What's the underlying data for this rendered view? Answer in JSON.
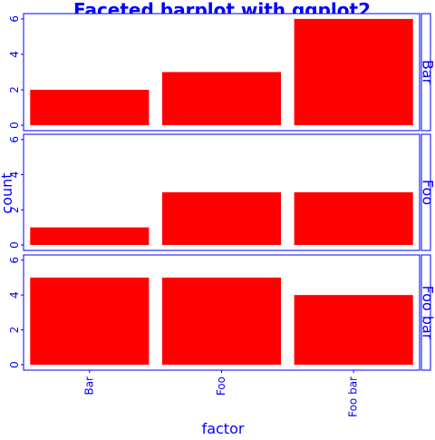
{
  "chart_data": {
    "type": "bar",
    "title": "Faceted barplot with ggplot2",
    "xlabel": "factor",
    "ylabel": "count",
    "categories": [
      "Bar",
      "Foo",
      "Foo bar"
    ],
    "ylim": [
      0,
      6.3
    ],
    "yticks": [
      "0",
      "2",
      "4",
      "6"
    ],
    "bar_color": "#ff0000",
    "text_color": "#0000ff",
    "axis_color": "#0000ff",
    "panel_background": "#ffffff",
    "grid": false,
    "facets": [
      {
        "label": "Bar",
        "values": [
          2,
          3,
          6
        ]
      },
      {
        "label": "Foo",
        "values": [
          1,
          3,
          3
        ]
      },
      {
        "label": "Foo bar",
        "values": [
          5,
          5,
          4
        ]
      }
    ]
  }
}
